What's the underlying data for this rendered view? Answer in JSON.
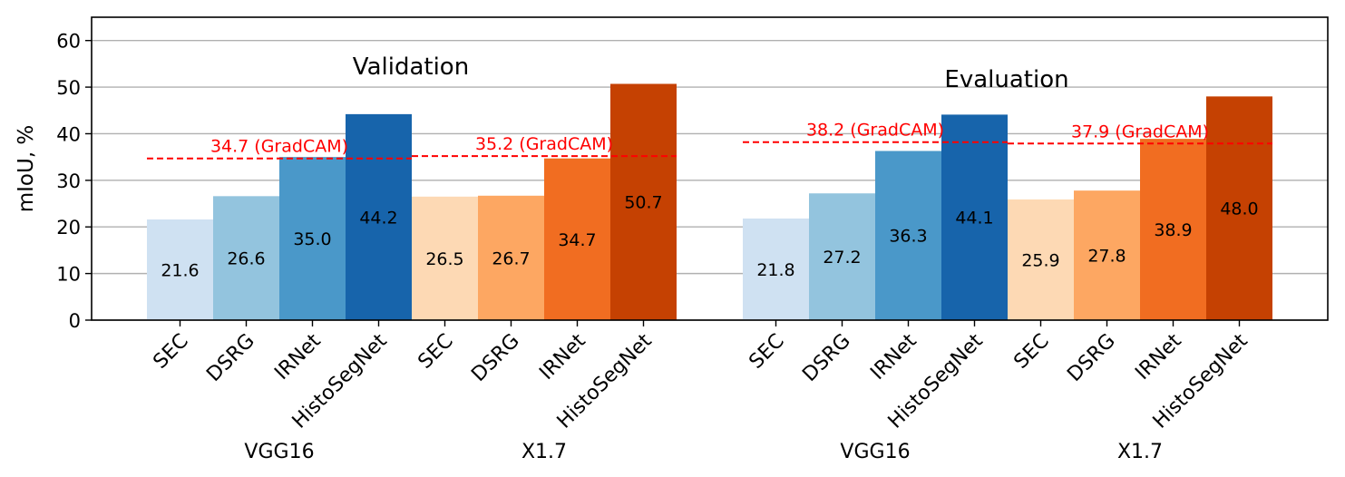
{
  "chart_data": {
    "type": "bar",
    "ylabel": "mIoU, %",
    "ylim": [
      0,
      65
    ],
    "yticks": [
      0,
      10,
      20,
      30,
      40,
      50,
      60
    ],
    "grid": "horizontal",
    "panels": [
      {
        "title": "Validation",
        "groups": [
          {
            "name": "VGG16",
            "categories": [
              "SEC",
              "DSRG",
              "IRNet",
              "HistoSegNet"
            ],
            "values": [
              21.6,
              26.6,
              35.0,
              44.2
            ],
            "value_labels": [
              "21.6",
              "26.6",
              "35.0",
              "44.2"
            ],
            "colors": [
              "#cfe1f2",
              "#93c4de",
              "#4a98c9",
              "#1764ab"
            ],
            "baseline_value": 34.7,
            "baseline_label": "34.7 (GradCAM)"
          },
          {
            "name": "X1.7",
            "categories": [
              "SEC",
              "DSRG",
              "IRNet",
              "HistoSegNet"
            ],
            "values": [
              26.5,
              26.7,
              34.7,
              50.7
            ],
            "value_labels": [
              "26.5",
              "26.7",
              "34.7",
              "50.7"
            ],
            "colors": [
              "#fdd9b4",
              "#fda762",
              "#f16d21",
              "#c54102"
            ],
            "baseline_value": 35.2,
            "baseline_label": "35.2 (GradCAM)"
          }
        ]
      },
      {
        "title": "Evaluation",
        "groups": [
          {
            "name": "VGG16",
            "categories": [
              "SEC",
              "DSRG",
              "IRNet",
              "HistoSegNet"
            ],
            "values": [
              21.8,
              27.2,
              36.3,
              44.1
            ],
            "value_labels": [
              "21.8",
              "27.2",
              "36.3",
              "44.1"
            ],
            "colors": [
              "#cfe1f2",
              "#93c4de",
              "#4a98c9",
              "#1764ab"
            ],
            "baseline_value": 38.2,
            "baseline_label": "38.2 (GradCAM)"
          },
          {
            "name": "X1.7",
            "categories": [
              "SEC",
              "DSRG",
              "IRNet",
              "HistoSegNet"
            ],
            "values": [
              25.9,
              27.8,
              38.9,
              48.0
            ],
            "value_labels": [
              "25.9",
              "27.8",
              "38.9",
              "48.0"
            ],
            "colors": [
              "#fdd9b4",
              "#fda762",
              "#f16d21",
              "#c54102"
            ],
            "baseline_value": 37.9,
            "baseline_label": "37.9 (GradCAM)"
          }
        ]
      }
    ],
    "baseline_color": "#ff0000"
  }
}
